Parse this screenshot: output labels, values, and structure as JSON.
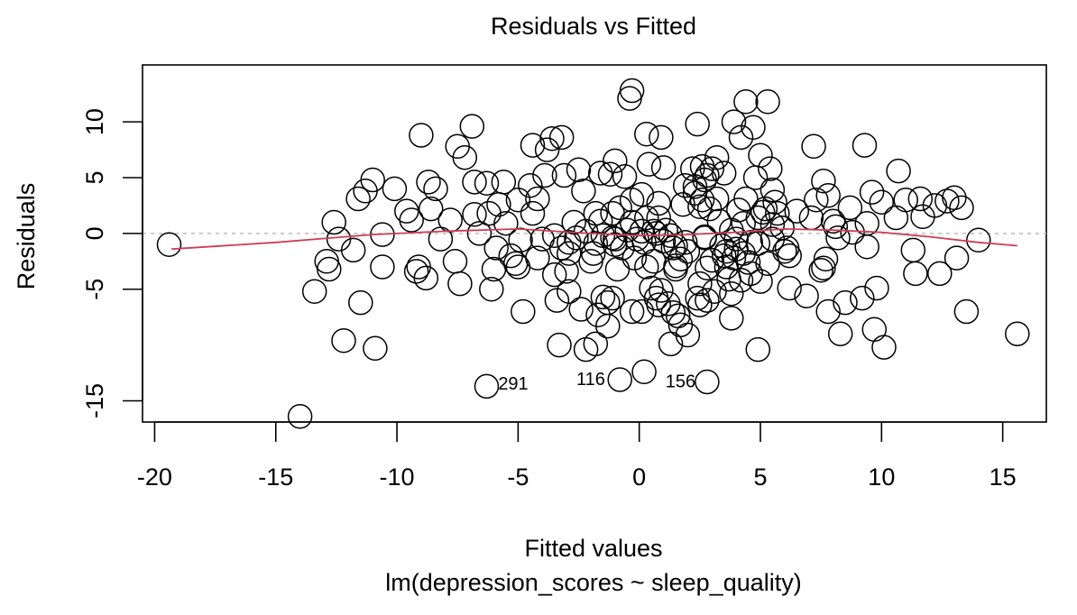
{
  "chart_data": {
    "type": "scatter",
    "title": "Residuals vs Fitted",
    "xlabel": "Fitted values",
    "subtitle": "lm(depression_scores ~ sleep_quality)",
    "ylabel": "Residuals",
    "xlim": [
      -20.5,
      16.8
    ],
    "ylim": [
      -16.9,
      15.1
    ],
    "xticks": [
      -20,
      -15,
      -10,
      -5,
      0,
      5,
      10,
      15
    ],
    "yticks": [
      -15,
      -5,
      0,
      5,
      10
    ],
    "grid": false,
    "reference_line": {
      "y": 0,
      "color": "#bbbbbb"
    },
    "smoother": {
      "color": "#cc3e52",
      "points": [
        [
          -19.3,
          -1.4
        ],
        [
          -15,
          -0.8
        ],
        [
          -11,
          -0.1
        ],
        [
          -8,
          0.2
        ],
        [
          -5,
          0.4
        ],
        [
          -2,
          0.0
        ],
        [
          0,
          -0.2
        ],
        [
          2,
          -0.1
        ],
        [
          4,
          0.1
        ],
        [
          6,
          0.4
        ],
        [
          8,
          0.3
        ],
        [
          10,
          0.1
        ],
        [
          12,
          -0.3
        ],
        [
          14,
          -0.8
        ],
        [
          15.6,
          -1.1
        ]
      ]
    },
    "labels": [
      {
        "text": "291",
        "x": -5.2,
        "y": -14.0
      },
      {
        "text": "116",
        "x": -2.0,
        "y": -13.6
      },
      {
        "text": "156",
        "x": 1.7,
        "y": -13.8
      }
    ],
    "points": [
      [
        -19.4,
        -1.0
      ],
      [
        -14.0,
        -16.4
      ],
      [
        -13.4,
        -5.2
      ],
      [
        -12.9,
        -2.5
      ],
      [
        -12.8,
        -3.2
      ],
      [
        -12.6,
        1.0
      ],
      [
        -12.4,
        -0.5
      ],
      [
        -12.2,
        -9.6
      ],
      [
        -11.8,
        -1.5
      ],
      [
        -11.6,
        3.1
      ],
      [
        -11.5,
        -6.2
      ],
      [
        -11.3,
        3.8
      ],
      [
        -11.0,
        4.8
      ],
      [
        -10.9,
        -10.3
      ],
      [
        -10.6,
        -3.0
      ],
      [
        -10.6,
        -0.1
      ],
      [
        -10.1,
        4.0
      ],
      [
        -9.6,
        2.0
      ],
      [
        -9.4,
        1.2
      ],
      [
        -9.2,
        -3.4
      ],
      [
        -9.1,
        -3.0
      ],
      [
        -9.0,
        8.8
      ],
      [
        -8.8,
        -4.0
      ],
      [
        -8.7,
        4.6
      ],
      [
        -8.6,
        2.2
      ],
      [
        -8.4,
        4.0
      ],
      [
        -8.2,
        -0.5
      ],
      [
        -7.8,
        1.2
      ],
      [
        -7.6,
        -2.5
      ],
      [
        -7.5,
        7.8
      ],
      [
        -7.4,
        -4.5
      ],
      [
        -7.2,
        6.8
      ],
      [
        -6.9,
        9.6
      ],
      [
        -6.8,
        4.6
      ],
      [
        -6.8,
        1.7
      ],
      [
        -6.6,
        0.0
      ],
      [
        -6.3,
        -13.7
      ],
      [
        -6.3,
        4.5
      ],
      [
        -6.2,
        1.8
      ],
      [
        -6.1,
        -5.0
      ],
      [
        -6.0,
        -3.2
      ],
      [
        -5.9,
        -1.3
      ],
      [
        -5.8,
        2.6
      ],
      [
        -5.6,
        4.6
      ],
      [
        -5.5,
        0.9
      ],
      [
        -5.3,
        -2.0
      ],
      [
        -5.1,
        -2.7
      ],
      [
        -5.0,
        -3.0
      ],
      [
        -5.0,
        3.0
      ],
      [
        -4.9,
        -0.6
      ],
      [
        -4.8,
        -7.0
      ],
      [
        -4.5,
        4.3
      ],
      [
        -4.4,
        1.8
      ],
      [
        -4.4,
        7.9
      ],
      [
        -4.2,
        -2.2
      ],
      [
        -4.2,
        3.1
      ],
      [
        -4.0,
        -0.5
      ],
      [
        -3.9,
        5.2
      ],
      [
        -3.8,
        7.5
      ],
      [
        -3.6,
        8.5
      ],
      [
        -3.5,
        -0.2
      ],
      [
        -3.5,
        -3.7
      ],
      [
        -3.4,
        -6.0
      ],
      [
        -3.3,
        -10.0
      ],
      [
        -3.2,
        -1.3
      ],
      [
        -3.2,
        8.6
      ],
      [
        -3.1,
        5.2
      ],
      [
        -3.0,
        -3.4
      ],
      [
        -2.9,
        -5.2
      ],
      [
        -2.9,
        -1.8
      ],
      [
        -2.9,
        -0.8
      ],
      [
        -2.7,
        1.0
      ],
      [
        -2.6,
        -0.4
      ],
      [
        -2.5,
        5.7
      ],
      [
        -2.4,
        -6.8
      ],
      [
        -2.3,
        3.8
      ],
      [
        -2.2,
        0.2
      ],
      [
        -2.2,
        -10.4
      ],
      [
        -2.0,
        -2.5
      ],
      [
        -1.9,
        -1.8
      ],
      [
        -1.8,
        -0.9
      ],
      [
        -1.8,
        1.8
      ],
      [
        -1.8,
        -9.9
      ],
      [
        -1.7,
        -7.3
      ],
      [
        -1.6,
        1.1
      ],
      [
        -1.6,
        5.4
      ],
      [
        -1.5,
        -5.7
      ],
      [
        -1.5,
        -0.2
      ],
      [
        -1.3,
        -6.2
      ],
      [
        -1.3,
        -8.3
      ],
      [
        -1.2,
        5.3
      ],
      [
        -1.1,
        1.8
      ],
      [
        -1.1,
        -0.4
      ],
      [
        -1.1,
        -5.8
      ],
      [
        -1.0,
        -1.0
      ],
      [
        -1.0,
        6.5
      ],
      [
        -1.0,
        -0.5
      ],
      [
        -0.9,
        -3.2
      ],
      [
        -0.8,
        -13.1
      ],
      [
        -0.8,
        2.3
      ],
      [
        -0.7,
        -1.3
      ],
      [
        -0.6,
        5.1
      ],
      [
        -0.5,
        0.3
      ],
      [
        -0.4,
        12.1
      ],
      [
        -0.3,
        1.0
      ],
      [
        -0.3,
        12.8
      ],
      [
        -0.3,
        -7.0
      ],
      [
        -0.3,
        3.0
      ],
      [
        -0.2,
        -2.2
      ],
      [
        -0.1,
        -0.5
      ],
      [
        0.1,
        -7.0
      ],
      [
        0.1,
        0.2
      ],
      [
        0.1,
        3.5
      ],
      [
        0.2,
        -0.8
      ],
      [
        0.2,
        -12.4
      ],
      [
        0.3,
        -3.0
      ],
      [
        0.3,
        8.9
      ],
      [
        0.3,
        1.4
      ],
      [
        0.4,
        6.2
      ],
      [
        0.5,
        -4.9
      ],
      [
        0.6,
        0.2
      ],
      [
        0.6,
        -2.5
      ],
      [
        0.7,
        0.0
      ],
      [
        0.7,
        -5.8
      ],
      [
        0.8,
        2.7
      ],
      [
        0.8,
        -6.4
      ],
      [
        0.8,
        1.4
      ],
      [
        0.9,
        8.6
      ],
      [
        0.9,
        -5.1
      ],
      [
        1.0,
        5.9
      ],
      [
        1.0,
        -0.7
      ],
      [
        1.1,
        0.3
      ],
      [
        1.2,
        -6.3
      ],
      [
        1.3,
        -9.9
      ],
      [
        1.3,
        -0.2
      ],
      [
        1.4,
        -1.3
      ],
      [
        1.4,
        -7.1
      ],
      [
        1.5,
        -2.9
      ],
      [
        1.5,
        -1.1
      ],
      [
        1.5,
        -3.2
      ],
      [
        1.6,
        -7.4
      ],
      [
        1.7,
        -8.2
      ],
      [
        1.7,
        -2.3
      ],
      [
        1.8,
        2.6
      ],
      [
        1.9,
        -0.8
      ],
      [
        1.9,
        4.3
      ],
      [
        2.0,
        -1.6
      ],
      [
        2.0,
        -9.1
      ],
      [
        2.2,
        5.8
      ],
      [
        2.3,
        3.6
      ],
      [
        2.3,
        4.2
      ],
      [
        2.4,
        9.8
      ],
      [
        2.4,
        -5.8
      ],
      [
        2.5,
        2.4
      ],
      [
        2.5,
        -4.5
      ],
      [
        2.5,
        -6.4
      ],
      [
        2.6,
        3.0
      ],
      [
        2.6,
        6.0
      ],
      [
        2.7,
        -0.3
      ],
      [
        2.7,
        -0.4
      ],
      [
        2.7,
        4.8
      ],
      [
        2.8,
        -13.3
      ],
      [
        2.8,
        5.2
      ],
      [
        2.8,
        -3.1
      ],
      [
        2.8,
        -6.0
      ],
      [
        2.9,
        2.2
      ],
      [
        3.0,
        5.8
      ],
      [
        3.0,
        -2.4
      ],
      [
        3.1,
        -5.2
      ],
      [
        3.2,
        3.1
      ],
      [
        3.2,
        6.8
      ],
      [
        3.3,
        1.1
      ],
      [
        3.4,
        -1.1
      ],
      [
        3.5,
        -2.0
      ],
      [
        3.5,
        5.4
      ],
      [
        3.6,
        -1.6
      ],
      [
        3.6,
        -3.0
      ],
      [
        3.7,
        -4.1
      ],
      [
        3.8,
        0.3
      ],
      [
        3.8,
        -7.6
      ],
      [
        3.8,
        -5.4
      ],
      [
        3.9,
        -2.2
      ],
      [
        3.9,
        10.0
      ],
      [
        4.0,
        -1.4
      ],
      [
        4.0,
        -0.5
      ],
      [
        4.1,
        2.1
      ],
      [
        4.2,
        8.6
      ],
      [
        4.2,
        -4.2
      ],
      [
        4.3,
        -1.8
      ],
      [
        4.3,
        0.9
      ],
      [
        4.4,
        3.1
      ],
      [
        4.4,
        11.8
      ],
      [
        4.5,
        -2.6
      ],
      [
        4.6,
        -0.8
      ],
      [
        4.6,
        -3.6
      ],
      [
        4.7,
        9.5
      ],
      [
        4.8,
        5.0
      ],
      [
        4.9,
        -10.4
      ],
      [
        4.9,
        1.4
      ],
      [
        4.9,
        -0.9
      ],
      [
        5.0,
        -4.3
      ],
      [
        5.0,
        7.0
      ],
      [
        5.1,
        1.9
      ],
      [
        5.2,
        2.2
      ],
      [
        5.3,
        11.8
      ],
      [
        5.3,
        -2.7
      ],
      [
        5.4,
        5.8
      ],
      [
        5.5,
        3.9
      ],
      [
        5.5,
        0.8
      ],
      [
        5.5,
        -0.5
      ],
      [
        5.6,
        2.8
      ],
      [
        5.7,
        1.8
      ],
      [
        5.9,
        0.5
      ],
      [
        6.0,
        -1.6
      ],
      [
        6.1,
        -1.3
      ],
      [
        6.2,
        -2.0
      ],
      [
        6.2,
        -4.9
      ],
      [
        6.5,
        2.0
      ],
      [
        6.9,
        -5.6
      ],
      [
        7.1,
        1.4
      ],
      [
        7.2,
        7.8
      ],
      [
        7.3,
        3.0
      ],
      [
        7.5,
        -3.3
      ],
      [
        7.6,
        -3.1
      ],
      [
        7.6,
        4.7
      ],
      [
        7.7,
        -2.3
      ],
      [
        7.8,
        3.4
      ],
      [
        7.8,
        -7.0
      ],
      [
        8.0,
        1.1
      ],
      [
        8.1,
        0.6
      ],
      [
        8.2,
        -0.4
      ],
      [
        8.3,
        -9.0
      ],
      [
        8.5,
        -6.2
      ],
      [
        8.7,
        2.3
      ],
      [
        8.8,
        0.1
      ],
      [
        9.2,
        -5.8
      ],
      [
        9.3,
        7.9
      ],
      [
        9.4,
        0.9
      ],
      [
        9.4,
        -1.2
      ],
      [
        9.6,
        3.7
      ],
      [
        9.7,
        -8.6
      ],
      [
        9.8,
        -4.9
      ],
      [
        10.0,
        2.8
      ],
      [
        10.1,
        -10.2
      ],
      [
        10.6,
        1.4
      ],
      [
        10.7,
        5.6
      ],
      [
        11.0,
        3.0
      ],
      [
        11.3,
        -1.5
      ],
      [
        11.4,
        -3.6
      ],
      [
        11.6,
        3.1
      ],
      [
        11.7,
        1.5
      ],
      [
        12.2,
        2.5
      ],
      [
        12.4,
        -3.6
      ],
      [
        12.7,
        2.9
      ],
      [
        13.0,
        3.2
      ],
      [
        13.1,
        -2.2
      ],
      [
        13.3,
        2.3
      ],
      [
        14.0,
        -0.6
      ],
      [
        13.5,
        -7.0
      ],
      [
        15.6,
        -9.0
      ]
    ]
  }
}
